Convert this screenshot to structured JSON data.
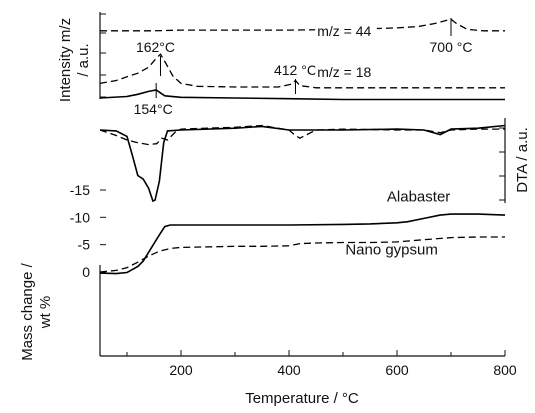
{
  "chart_data": [
    {
      "type": "line",
      "panel": "ms",
      "ylabel": "Intensity m/z / a.u.",
      "ylabel_lines": [
        "Intensity m/z",
        "/ a.u."
      ],
      "xlim": [
        50,
        800
      ],
      "series": [
        {
          "name": "m/z = 44",
          "style": "dashed",
          "x": [
            50,
            100,
            150,
            200,
            300,
            400,
            500,
            550,
            600,
            640,
            670,
            690,
            700,
            710,
            730,
            760,
            800
          ],
          "y": [
            0.92,
            0.92,
            0.92,
            0.93,
            0.93,
            0.93,
            0.94,
            0.95,
            0.96,
            0.98,
            1.02,
            1.06,
            1.08,
            1.02,
            0.94,
            0.92,
            0.92
          ]
        },
        {
          "name": "m/z = 18",
          "style": "dashed",
          "x": [
            50,
            80,
            100,
            120,
            140,
            155,
            162,
            170,
            185,
            200,
            230,
            300,
            380,
            405,
            412,
            420,
            450,
            550,
            700,
            800
          ],
          "y": [
            0.2,
            0.24,
            0.29,
            0.34,
            0.42,
            0.55,
            0.6,
            0.5,
            0.3,
            0.2,
            0.16,
            0.15,
            0.15,
            0.19,
            0.24,
            0.17,
            0.14,
            0.14,
            0.14,
            0.14
          ]
        },
        {
          "name": "",
          "style": "solid",
          "x": [
            50,
            100,
            120,
            140,
            154,
            162,
            170,
            200,
            300,
            400,
            500,
            600,
            700,
            800
          ],
          "y": [
            0.0,
            0.02,
            0.05,
            0.09,
            0.11,
            0.07,
            0.03,
            0.01,
            0.0,
            -0.01,
            -0.02,
            -0.02,
            -0.02,
            -0.02
          ]
        }
      ],
      "annotations": [
        {
          "text": "162°C",
          "x": 162,
          "y": 0.6
        },
        {
          "text": "412 °C",
          "x": 412,
          "y": 0.24
        },
        {
          "text": "m/z = 18",
          "x": 430,
          "y": 0.15
        },
        {
          "text": "154°C",
          "x": 154,
          "y": 0.11
        },
        {
          "text": "m/z = 44",
          "x": 430,
          "y": 0.93
        },
        {
          "text": "700 °C",
          "x": 700,
          "y": 1.08
        }
      ]
    },
    {
      "type": "line",
      "panel": "dta",
      "ylabel": "DTA / a.u.",
      "xlim": [
        50,
        800
      ],
      "series": [
        {
          "name": "Alabaster",
          "style": "solid",
          "x": [
            50,
            80,
            100,
            110,
            120,
            130,
            140,
            148,
            152,
            160,
            168,
            175,
            200,
            300,
            350,
            400,
            500,
            600,
            650,
            680,
            700,
            750,
            800
          ],
          "y": [
            0.0,
            -0.05,
            -0.35,
            -1.4,
            -2.5,
            -2.7,
            -3.2,
            -3.9,
            -3.85,
            -2.8,
            -0.7,
            -0.05,
            0.0,
            0.1,
            0.2,
            0.0,
            0.0,
            0.05,
            0.0,
            -0.25,
            0.05,
            0.1,
            0.25
          ]
        },
        {
          "name": "Nano gypsum",
          "style": "dashed",
          "x": [
            50,
            80,
            100,
            120,
            140,
            155,
            165,
            175,
            190,
            200,
            250,
            300,
            350,
            400,
            410,
            420,
            430,
            450,
            500,
            600,
            650,
            680,
            700,
            750,
            800
          ],
          "y": [
            0.0,
            -0.3,
            -0.55,
            -0.7,
            -0.8,
            -0.75,
            -0.45,
            -0.55,
            -0.1,
            0.05,
            0.1,
            0.15,
            0.25,
            0.0,
            -0.25,
            -0.45,
            -0.3,
            0.0,
            0.05,
            0.0,
            0.0,
            -0.15,
            0.0,
            0.05,
            0.05
          ]
        }
      ]
    },
    {
      "type": "line",
      "panel": "tg",
      "xlabel": "Temperature / °C",
      "ylabel": "Mass change / wt %",
      "ylabel_lines": [
        "Mass change /",
        "wt %"
      ],
      "xlim": [
        50,
        800
      ],
      "ylim": [
        -15,
        1
      ],
      "xticks": [
        200,
        400,
        600,
        800
      ],
      "yticks": [
        0,
        -5,
        -10,
        -15
      ],
      "series": [
        {
          "name": "Nano gypsum",
          "style": "dashed",
          "x": [
            50,
            80,
            100,
            120,
            140,
            160,
            180,
            200,
            250,
            300,
            350,
            400,
            420,
            450,
            500,
            550,
            600,
            650,
            700,
            750,
            800
          ],
          "y": [
            0,
            -0.3,
            -0.8,
            -1.8,
            -2.9,
            -3.8,
            -4.3,
            -4.5,
            -4.6,
            -4.7,
            -4.7,
            -4.8,
            -5.2,
            -5.3,
            -5.4,
            -5.4,
            -5.5,
            -5.9,
            -6.3,
            -6.4,
            -6.4
          ]
        },
        {
          "name": "Alabaster",
          "style": "solid",
          "x": [
            50,
            80,
            100,
            120,
            130,
            140,
            150,
            160,
            170,
            180,
            200,
            300,
            400,
            500,
            550,
            600,
            620,
            650,
            680,
            700,
            750,
            800
          ],
          "y": [
            0.2,
            0.3,
            0.1,
            -1.0,
            -2.0,
            -3.6,
            -5.2,
            -6.8,
            -8.3,
            -8.6,
            -8.6,
            -8.6,
            -8.6,
            -8.7,
            -8.8,
            -9.0,
            -9.2,
            -9.8,
            -10.4,
            -10.6,
            -10.6,
            -10.4
          ]
        }
      ],
      "labels": [
        {
          "text": "Nano gypsum",
          "x": 590,
          "y": -3.2
        },
        {
          "text": "Alabaster",
          "x": 640,
          "y": -12.9
        }
      ]
    }
  ]
}
